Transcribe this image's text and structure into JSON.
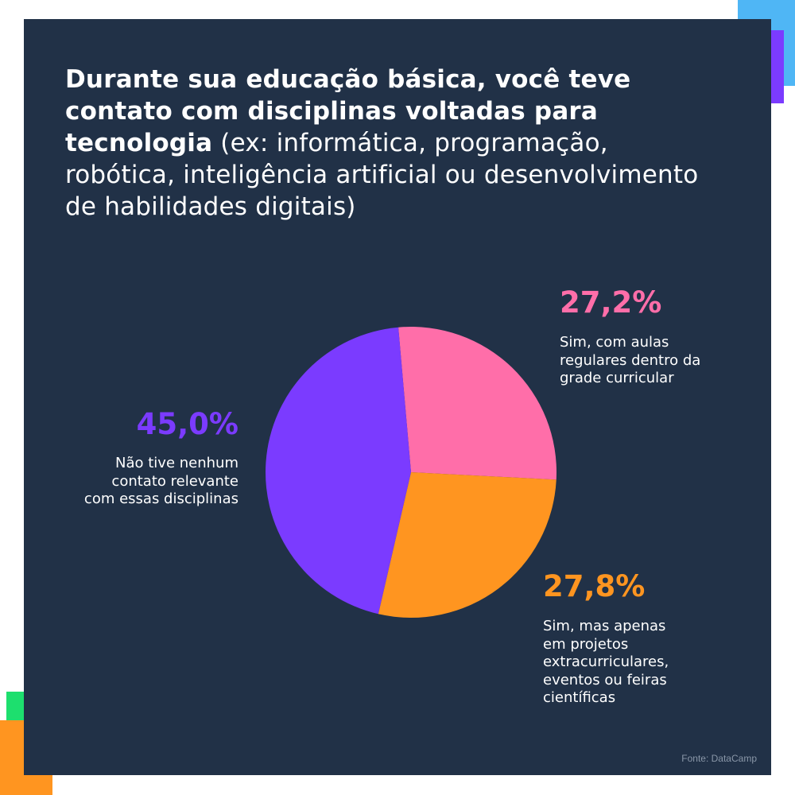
{
  "title": {
    "bold": "Durante sua educação básica, você teve contato com disciplinas voltadas para tecnologia",
    "regular": " (ex: informática, programação, robótica, inteligência artificial ou desenvolvimento de habilidades digitais)"
  },
  "chart_data": {
    "type": "pie",
    "slices": [
      {
        "label": "Sim, com aulas regulares dentro da grade curricular",
        "value": 27.2,
        "display": "27,2%",
        "color": "#ff6ea9"
      },
      {
        "label": "Sim, mas apenas em projetos extracurriculares, eventos ou feiras científicas",
        "value": 27.8,
        "display": "27,8%",
        "color": "#ff9520"
      },
      {
        "label": "Não tive nenhum contato relevante com essas disciplinas",
        "value": 45.0,
        "display": "45,0%",
        "color": "#7b3bff"
      }
    ]
  },
  "labels": {
    "pink": {
      "pct": "27,2%",
      "desc": "Sim, com aulas\nregulares dentro da\ngrade curricular"
    },
    "orange": {
      "pct": "27,8%",
      "desc": "Sim, mas apenas\nem projetos\nextracurriculares,\neventos ou feiras\ncientíficas"
    },
    "purple": {
      "pct": "45,0%",
      "desc": "Não tive nenhum\ncontato relevante\ncom essas disciplinas"
    }
  },
  "source": "Fonte: DataCamp",
  "colors": {
    "background_panel": "#213147",
    "pink": "#ff6ea9",
    "orange": "#ff9520",
    "purple": "#7b3bff",
    "deco_blue": "#4fb6f5",
    "deco_green": "#1ddf6e"
  }
}
